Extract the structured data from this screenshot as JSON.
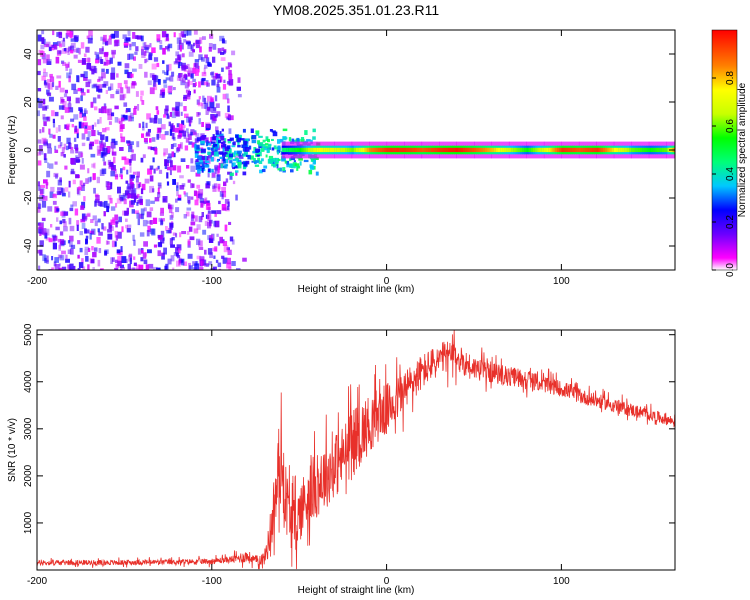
{
  "title": "YM08.2025.351.01.23.R11",
  "chart_data": [
    {
      "type": "heatmap",
      "xlabel": "Height of straight line (km)",
      "ylabel": "Frequency (Hz)",
      "xlim": [
        -200,
        165
      ],
      "ylim": [
        -50,
        50
      ],
      "xticks": [
        -200,
        -100,
        0,
        100
      ],
      "yticks": [
        -40,
        -20,
        0,
        20,
        40
      ],
      "colorbar": {
        "label": "Normalized spectral amplitude",
        "range": [
          0,
          1
        ],
        "ticks": [
          "0.0",
          "0.2",
          "0.4",
          "0.6",
          "0.8"
        ],
        "tick_values": [
          0.0,
          0.2,
          0.4,
          0.6,
          0.8
        ],
        "colormap": [
          "#ffffff",
          "#ff00ff",
          "#6a00ff",
          "#0000ff",
          "#00c8ff",
          "#00ff78",
          "#00ff00",
          "#c8ff00",
          "#ffff00",
          "#ff8000",
          "#ff0000"
        ]
      },
      "noise_band": {
        "x": [
          -200,
          -82
        ],
        "freq": [
          -50,
          50
        ],
        "level": 0.1
      },
      "transition_band": {
        "x": [
          -110,
          -40
        ],
        "freq_halfwidth": 5,
        "level": 0.35
      },
      "signal_line": {
        "x": [
          -60,
          -50,
          -40,
          -30,
          -20,
          -10,
          0,
          10,
          20,
          30,
          40,
          50,
          60,
          70,
          80,
          90,
          100,
          110,
          120,
          130,
          140,
          150,
          160,
          165
        ],
        "amplitude": [
          0.45,
          0.55,
          0.75,
          0.7,
          0.6,
          0.85,
          0.95,
          0.95,
          0.9,
          0.95,
          0.98,
          0.9,
          0.8,
          0.65,
          0.55,
          0.7,
          0.95,
          0.9,
          0.95,
          0.75,
          0.6,
          0.55,
          0.6,
          0.9
        ],
        "freq": 0
      }
    },
    {
      "type": "line",
      "xlabel": "Height of straight line (km)",
      "ylabel": "SNR (10 * v/v)",
      "xlim": [
        -200,
        165
      ],
      "ylim": [
        0,
        5100
      ],
      "xticks": [
        -200,
        -100,
        0,
        100
      ],
      "yticks": [
        1000,
        2000,
        3000,
        4000,
        5000
      ],
      "series": [
        {
          "name": "SNR",
          "color": "#e8302a",
          "x": [
            -200,
            -180,
            -160,
            -140,
            -120,
            -100,
            -90,
            -85,
            -80,
            -75,
            -70,
            -68,
            -65,
            -62,
            -60,
            -58,
            -55,
            -52,
            -50,
            -45,
            -40,
            -35,
            -30,
            -25,
            -20,
            -15,
            -10,
            -5,
            0,
            5,
            10,
            15,
            20,
            25,
            30,
            35,
            40,
            45,
            50,
            55,
            60,
            65,
            70,
            75,
            80,
            85,
            90,
            95,
            100,
            105,
            110,
            115,
            120,
            125,
            130,
            135,
            140,
            145,
            150,
            155,
            160,
            165
          ],
          "values": [
            150,
            160,
            155,
            165,
            170,
            185,
            220,
            250,
            290,
            200,
            250,
            500,
            1200,
            1900,
            2300,
            1600,
            1100,
            900,
            1200,
            1600,
            1800,
            2000,
            2200,
            2400,
            2700,
            2900,
            3100,
            3300,
            3400,
            3600,
            3800,
            4000,
            4200,
            4350,
            4450,
            4550,
            4500,
            4400,
            4300,
            4250,
            4200,
            4150,
            4100,
            4100,
            4050,
            4000,
            3950,
            3900,
            3850,
            3800,
            3700,
            3650,
            3600,
            3550,
            3500,
            3450,
            3400,
            3350,
            3300,
            3250,
            3200,
            3150
          ],
          "noise_amplitude": [
            80,
            80,
            80,
            80,
            80,
            90,
            100,
            150,
            200,
            150,
            200,
            400,
            900,
            1100,
            1200,
            1100,
            900,
            800,
            900,
            1000,
            1000,
            1000,
            1000,
            1000,
            1000,
            950,
            900,
            850,
            800,
            700,
            650,
            600,
            550,
            500,
            500,
            500,
            450,
            400,
            350,
            350,
            320,
            300,
            300,
            300,
            280,
            260,
            250,
            250,
            240,
            240,
            230,
            220,
            220,
            210,
            200,
            200,
            200,
            190,
            180,
            180,
            170,
            170
          ]
        }
      ]
    }
  ]
}
